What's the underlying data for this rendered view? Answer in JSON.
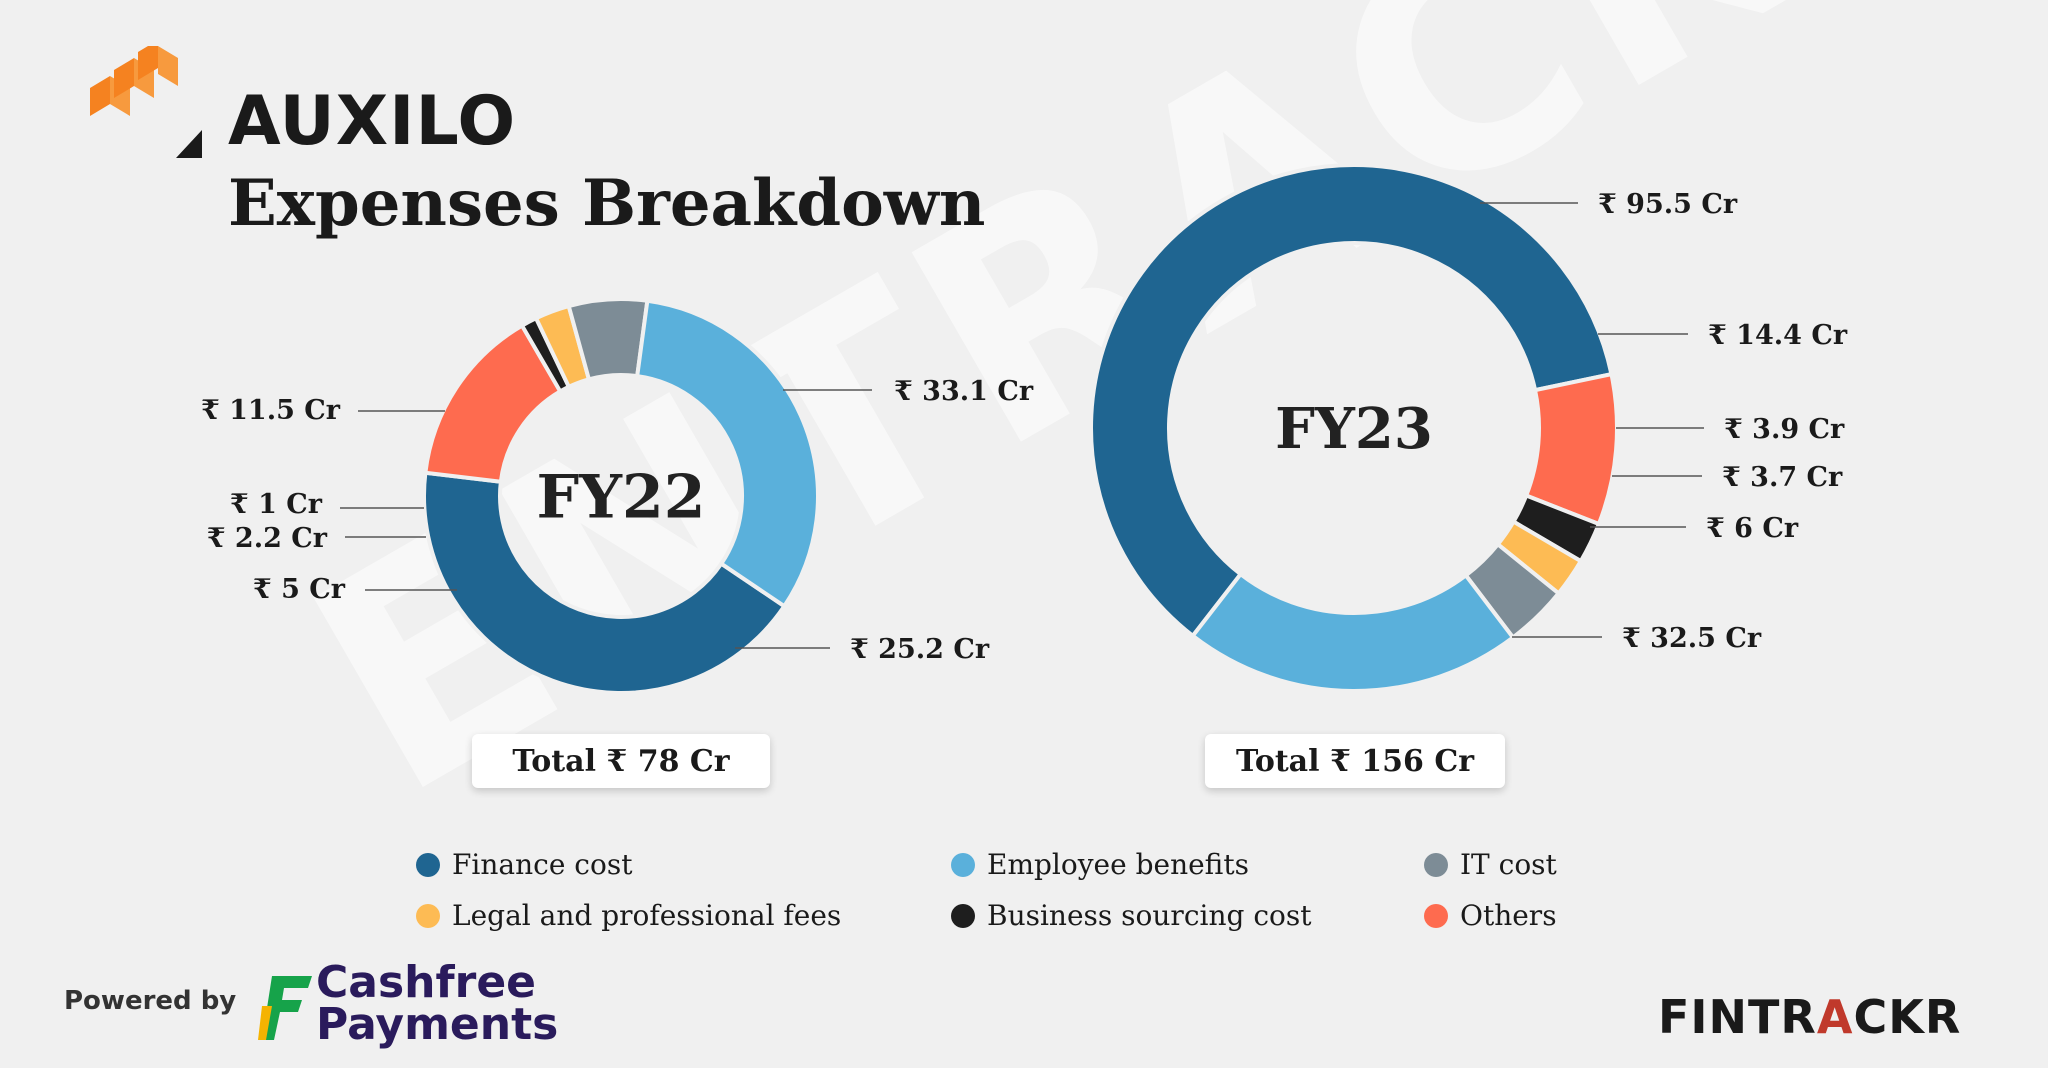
{
  "brand": "AUXILO",
  "watermark": "ENTRACKR",
  "title": "Expenses Breakdown",
  "colors": {
    "finance": "#1f6591",
    "employee": "#5ab0db",
    "it": "#7d8c96",
    "legal": "#fdbb54",
    "business": "#1e1e1e",
    "others": "#fe6b4f"
  },
  "chart_data": [
    {
      "type": "pie",
      "title": "FY22",
      "total_label": "Total ₹ 78 Cr",
      "slices": [
        {
          "category": "finance",
          "value": 33.1,
          "label": "₹ 33.1 Cr"
        },
        {
          "category": "employee",
          "value": 25.2,
          "label": "₹ 25.2 Cr"
        },
        {
          "category": "it",
          "value": 5,
          "label": "₹ 5 Cr"
        },
        {
          "category": "legal",
          "value": 2.2,
          "label": "₹ 2.2 Cr"
        },
        {
          "category": "business",
          "value": 1,
          "label": "₹ 1 Cr"
        },
        {
          "category": "others",
          "value": 11.5,
          "label": "₹ 11.5 Cr"
        }
      ]
    },
    {
      "type": "pie",
      "title": "FY23",
      "total_label": "Total ₹ 156 Cr",
      "slices": [
        {
          "category": "finance",
          "value": 95.5,
          "label": "₹ 95.5 Cr"
        },
        {
          "category": "employee",
          "value": 32.5,
          "label": "₹ 32.5 Cr"
        },
        {
          "category": "it",
          "value": 6,
          "label": "₹ 6 Cr"
        },
        {
          "category": "legal",
          "value": 3.7,
          "label": "₹ 3.7 Cr"
        },
        {
          "category": "business",
          "value": 3.9,
          "label": "₹ 3.9 Cr"
        },
        {
          "category": "others",
          "value": 14.4,
          "label": "₹ 14.4 Cr"
        }
      ]
    }
  ],
  "legend": [
    {
      "key": "finance",
      "label": "Finance cost"
    },
    {
      "key": "employee",
      "label": "Employee benefits"
    },
    {
      "key": "it",
      "label": "IT cost"
    },
    {
      "key": "legal",
      "label": "Legal and professional fees"
    },
    {
      "key": "business",
      "label": "Business sourcing cost"
    },
    {
      "key": "others",
      "label": "Others"
    }
  ],
  "footer": {
    "powered_by": "Powered by",
    "sponsor_line1": "Cashfree",
    "sponsor_line2": "Payments",
    "fintrackr_a": "FINTR",
    "fintrackr_b": "A",
    "fintrackr_c": "CKR"
  }
}
